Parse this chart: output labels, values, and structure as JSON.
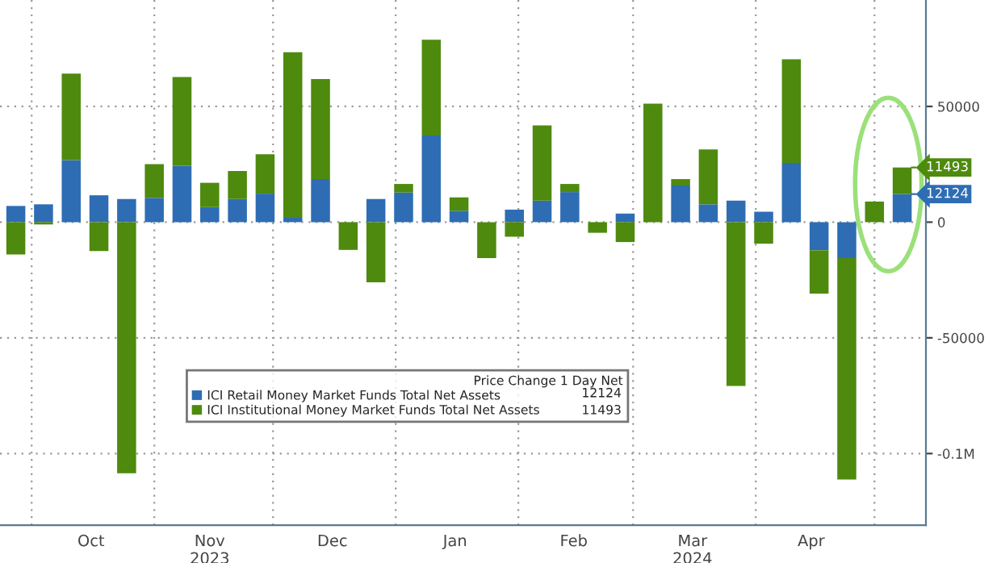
{
  "chart_data": {
    "type": "bar",
    "stacked": true,
    "x": [
      "2023-09-27",
      "2023-10-04",
      "2023-10-11",
      "2023-10-18",
      "2023-10-25",
      "2023-11-01",
      "2023-11-08",
      "2023-11-15",
      "2023-11-22",
      "2023-11-29",
      "2023-12-06",
      "2023-12-13",
      "2023-12-20",
      "2023-12-27",
      "2024-01-03",
      "2024-01-10",
      "2024-01-17",
      "2024-01-24",
      "2024-01-31",
      "2024-02-07",
      "2024-02-14",
      "2024-02-21",
      "2024-02-28",
      "2024-03-06",
      "2024-03-13",
      "2024-03-20",
      "2024-03-27",
      "2024-04-03",
      "2024-04-10",
      "2024-04-17",
      "2024-04-24",
      "2024-05-01",
      "2024-05-08"
    ],
    "series": [
      {
        "name": "ICI Retail Money Market Funds Total Net Assets",
        "color": "#2e6db4",
        "values": [
          7000,
          7700,
          26800,
          11600,
          10000,
          10500,
          24400,
          6500,
          10000,
          12300,
          1900,
          18600,
          0,
          10000,
          12800,
          37400,
          4900,
          0,
          5400,
          9300,
          13000,
          0,
          3700,
          0,
          15800,
          7700,
          9300,
          4500,
          25600,
          -12100,
          -15500,
          0,
          12124
        ]
      },
      {
        "name": "ICI Institutional Money Market Funds Total Net Assets",
        "color": "#4e8a0e",
        "values": [
          -14000,
          -1000,
          37400,
          -12500,
          -108500,
          14600,
          38300,
          10500,
          12100,
          17000,
          71500,
          43200,
          -12000,
          -26000,
          3700,
          41400,
          5800,
          -15500,
          -6300,
          32500,
          3500,
          -4600,
          -8600,
          51200,
          2800,
          23700,
          -70800,
          -9300,
          44800,
          -18800,
          -95700,
          8900,
          11493
        ]
      }
    ],
    "annotations": [
      {
        "text": "12124",
        "x": "2024-05-08",
        "y": 12124
      },
      {
        "text": "11493",
        "x": "2024-05-08",
        "y": 23617
      }
    ],
    "xlim": [
      "2023-09-23",
      "2024-05-14"
    ],
    "xticks": [
      {
        "value": "2023-10-01",
        "label": null
      },
      {
        "value": "2023-10-16",
        "label": "Oct"
      },
      {
        "value": "2023-11-01",
        "label": null
      },
      {
        "value": "2023-11-15",
        "label": "Nov\n2023"
      },
      {
        "value": "2023-12-01",
        "label": null
      },
      {
        "value": "2023-12-16",
        "label": "Dec"
      },
      {
        "value": "2024-01-01",
        "label": null
      },
      {
        "value": "2024-01-16",
        "label": "Jan"
      },
      {
        "value": "2024-02-01",
        "label": null
      },
      {
        "value": "2024-02-15",
        "label": "Feb"
      },
      {
        "value": "2024-03-01",
        "label": null
      },
      {
        "value": "2024-03-16",
        "label": "Mar\n2024"
      },
      {
        "value": "2024-04-01",
        "label": null
      },
      {
        "value": "2024-04-15",
        "label": "Apr"
      },
      {
        "value": "2024-05-01",
        "label": null
      }
    ],
    "ylim": [
      -131000,
      96000
    ],
    "yticks": [
      50000,
      0,
      -50000,
      {
        "value": -100000,
        "label": "-0.1M"
      }
    ],
    "grid": true,
    "legend": "bottom",
    "legend_title": "Price Change 1 Day Net"
  }
}
